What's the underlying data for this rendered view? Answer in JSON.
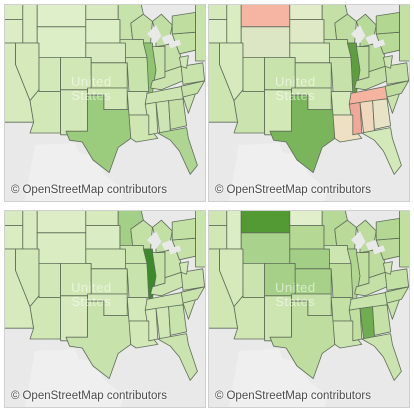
{
  "attribution": {
    "symbol": "©",
    "text": "OpenStreetMap contributors"
  },
  "basemap_label": [
    "United",
    "States"
  ],
  "panels": [
    {
      "name": "map-panel-top-left",
      "colors": {
        "wa": "#d9ecc2",
        "or": "#dcedc6",
        "ca": "#d6eabd",
        "nv": "#d5e9bb",
        "id": "#d8ebc1",
        "mt": "#dfefc9",
        "wy": "#dbeec5",
        "ut": "#d4e9ba",
        "az": "#d2e8b7",
        "co": "#d1e7b6",
        "nm": "#d3e8b8",
        "nd": "#d8ebc0",
        "sd": "#dceec6",
        "ne": "#d7eabf",
        "ks": "#cfe6b3",
        "ok": "#d2e8b6",
        "tx": "#9bcb7d",
        "mn": "#c7e2aa",
        "ia": "#cce4b0",
        "mo": "#c9e3ad",
        "ar": "#d3e8b8",
        "la": "#cfe6b3",
        "wi": "#c5e1a8",
        "il": "#8fc571",
        "mi": "#c1dfa3",
        "in": "#c7e2aa",
        "oh": "#c6e1a9",
        "ky": "#cbe4af",
        "tn": "#cce5b1",
        "ms": "#d2e8b7",
        "al": "#cde5b2",
        "ga": "#c4e0a6",
        "fl": "#afd593",
        "sc": "#cde5b2",
        "nc": "#c6e2a9",
        "va": "#c9e3ac",
        "wv": "#d1e7b5",
        "pa": "#c3e0a5",
        "ny": "#bedd9f",
        "ne_states": "#c8e3ab"
      }
    },
    {
      "name": "map-panel-top-right",
      "colors": {
        "wa": "#d5e9bb",
        "or": "#dbedc4",
        "ca": "#cde5b1",
        "nv": "#d6eabd",
        "id": "#d9ecc2",
        "mt": "#f6b5a2",
        "wy": "#dde6c4",
        "ut": "#d0e7b4",
        "az": "#cbe4af",
        "co": "#c9e3ad",
        "nm": "#d2e8b6",
        "nd": "#e2ecc9",
        "sd": "#e0e9c6",
        "ne": "#d6eabd",
        "ks": "#c9e3ad",
        "ok": "#cde5b1",
        "tx": "#7ab55c",
        "mn": "#c4e0a6",
        "ia": "#c9e3ad",
        "mo": "#c6e1a9",
        "ar": "#d5e9bb",
        "la": "#ede0c3",
        "wi": "#bfdda0",
        "il": "#5f9e3f",
        "mi": "#b8da98",
        "in": "#c0de9f",
        "oh": "#bcdc9c",
        "ky": "#c4e0a6",
        "tn": "#f6b4a0",
        "ms": "#f1a79a",
        "al": "#efd8bd",
        "ga": "#e8e2c6",
        "fl": "#d4e9ba",
        "sc": "#c9e3ac",
        "nc": "#bfdd9f",
        "va": "#c4e0a6",
        "wv": "#cce4b0",
        "pa": "#b8da97",
        "ny": "#b2d791",
        "ne_states": "#c3e0a5"
      }
    },
    {
      "name": "map-panel-bottom-left",
      "colors": {
        "wa": "#d8ebc0",
        "or": "#d9ecc2",
        "ca": "#d6eabd",
        "nv": "#d3e8b8",
        "id": "#d8ebc1",
        "mt": "#ddeec6",
        "wy": "#d9ecc2",
        "ut": "#d3e8b9",
        "az": "#d1e7b6",
        "co": "#d0e7b4",
        "nm": "#d6eabd",
        "nd": "#d6eabd",
        "sd": "#d9ecc3",
        "ne": "#d2e8b7",
        "ks": "#cee6b3",
        "ok": "#d4e9ba",
        "tx": "#c7e2aa",
        "mn": "#a4cf86",
        "ia": "#cae4ae",
        "mo": "#c8e3ab",
        "ar": "#d4e9ba",
        "la": "#d2e8b7",
        "wi": "#c3e0a5",
        "il": "#3d8a2a",
        "mi": "#c2dfa4",
        "in": "#c6e2a9",
        "oh": "#c8e3ab",
        "ky": "#ccE4b0",
        "tn": "#cfe6b3",
        "ms": "#d5e9bb",
        "al": "#d1e7b5",
        "ga": "#c9e3ac",
        "fl": "#cbe4af",
        "sc": "#cfe6b3",
        "nc": "#c9e3ac",
        "va": "#cae4ae",
        "wv": "#d3e8b8",
        "pa": "#c5e1a8",
        "ny": "#c3e0a5",
        "ne_states": "#cae4ad"
      }
    },
    {
      "name": "map-panel-bottom-right",
      "colors": {
        "wa": "#cfe6b3",
        "or": "#d1e7b6",
        "ca": "#d0e7b4",
        "nv": "#d5e9bb",
        "id": "#dbedc4",
        "mt": "#549a34",
        "wy": "#a9d28c",
        "ut": "#cbe4af",
        "az": "#d0e7b4",
        "co": "#a6d088",
        "nm": "#cde5b1",
        "nd": "#e1efcb",
        "sd": "#b5d895",
        "ne": "#a2ce85",
        "ks": "#a7d189",
        "ok": "#c6e1a9",
        "tx": "#bfdd9f",
        "mn": "#b7d997",
        "ia": "#cde5b1",
        "mo": "#bcdc9c",
        "ar": "#c3e0a5",
        "la": "#cce4b0",
        "wi": "#b9da99",
        "il": "#b0d690",
        "mi": "#bddc9d",
        "in": "#c0de9f",
        "oh": "#bddc9d",
        "ky": "#c4e0a6",
        "tn": "#c9e3ad",
        "ms": "#c1df9f",
        "al": "#6fad50",
        "ga": "#c5e1a8",
        "fl": "#cbe4af",
        "sc": "#c8e3ab",
        "nc": "#c2dfa4",
        "va": "#c3e0a5",
        "wv": "#cfe6b3",
        "pa": "#bad99a",
        "ny": "#b4d894",
        "ne_states": "#c1df9f"
      }
    }
  ],
  "style": {
    "ocean": "#e9e9ea",
    "land_outside": "#efefef",
    "border": "#5f6d5a"
  }
}
